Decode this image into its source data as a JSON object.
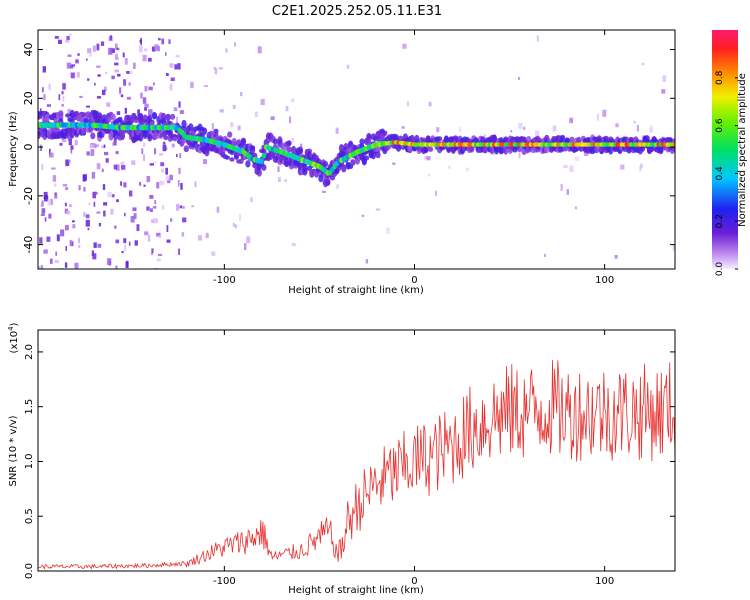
{
  "figure": {
    "title": "C2E1.2025.252.05.11.E31"
  },
  "chart_data": [
    {
      "id": "spectrogram",
      "type": "heatmap",
      "xlabel": "Height of straight line (km)",
      "ylabel": "Frequency (Hz)",
      "xlim": [
        -198,
        137
      ],
      "ylim": [
        -50,
        48
      ],
      "xticks": [
        -100,
        0,
        100
      ],
      "yticks": [
        -40,
        -20,
        0,
        20,
        40
      ],
      "ridge": {
        "x": [
          -198,
          -185,
          -170,
          -155,
          -140,
          -125,
          -120,
          -110,
          -100,
          -90,
          -85,
          -80,
          -78,
          -70,
          -60,
          -50,
          -45,
          -42,
          -40,
          -35,
          -30,
          -20,
          -10,
          0,
          20,
          50,
          80,
          100,
          110,
          137
        ],
        "y": [
          9,
          9,
          9,
          8,
          8,
          8,
          4,
          3,
          1,
          -2,
          -5,
          -6,
          0,
          -2,
          -5,
          -8,
          -11,
          -8,
          -6,
          -4,
          -2,
          1,
          2,
          1,
          1,
          1,
          1,
          1,
          1,
          1
        ]
      },
      "colorbar": {
        "label": "Normalized spectral amplitude",
        "range": [
          0,
          1
        ],
        "ticks": [
          0.0,
          0.2,
          0.4,
          0.6,
          0.8
        ],
        "tick_labels": [
          "0.0",
          "0.2",
          "0.4",
          "0.6",
          "0.8"
        ]
      }
    },
    {
      "id": "snr",
      "type": "line",
      "xlabel": "Height of straight line (km)",
      "ylabel": "SNR (10 * v/v)",
      "scale_label": "(x10",
      "scale_exp": "4",
      "xlim": [
        -198,
        137
      ],
      "ylim": [
        0,
        2.2
      ],
      "xticks": [
        -100,
        0,
        100
      ],
      "yticks": [
        0.0,
        0.5,
        1.0,
        1.5,
        2.0
      ],
      "ytick_labels": [
        "0.0",
        "0.5",
        "1.0",
        "1.5",
        "2.0"
      ],
      "series": [
        {
          "name": "SNR",
          "color": "#e8312f",
          "envelope_x": [
            -198,
            -170,
            -140,
            -120,
            -110,
            -100,
            -90,
            -85,
            -80,
            -75,
            -70,
            -60,
            -50,
            -45,
            -40,
            -35,
            -30,
            -20,
            -10,
            0,
            10,
            20,
            30,
            40,
            50,
            60,
            70,
            80,
            90,
            100,
            110,
            120,
            130,
            137
          ],
          "envelope_y": [
            0.02,
            0.02,
            0.03,
            0.05,
            0.12,
            0.18,
            0.22,
            0.25,
            0.3,
            0.1,
            0.12,
            0.15,
            0.25,
            0.3,
            0.1,
            0.45,
            0.6,
            0.8,
            0.9,
            1.0,
            1.05,
            1.15,
            1.3,
            1.4,
            1.45,
            1.45,
            1.5,
            1.45,
            1.45,
            1.45,
            1.45,
            1.45,
            1.45,
            1.5
          ]
        }
      ]
    }
  ]
}
